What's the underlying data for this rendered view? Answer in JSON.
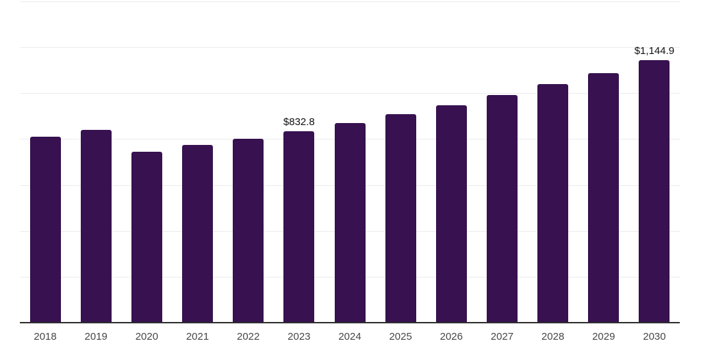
{
  "chart_data": {
    "type": "bar",
    "categories": [
      "2018",
      "2019",
      "2020",
      "2021",
      "2022",
      "2023",
      "2024",
      "2025",
      "2026",
      "2027",
      "2028",
      "2029",
      "2030"
    ],
    "values": [
      811,
      841,
      746,
      773,
      802,
      832.8,
      871,
      909,
      948,
      993,
      1040,
      1088,
      1144.9
    ],
    "annotations": [
      {
        "category": "2023",
        "text": "$832.8"
      },
      {
        "category": "2030",
        "text": "$1,144.9"
      }
    ],
    "title": "",
    "xlabel": "",
    "ylabel": "",
    "ylim": [
      0,
      1400
    ],
    "grid": "horizontal",
    "grid_interval": 200,
    "y_tick_labels_visible": false,
    "legend": "none",
    "colors": {
      "bar": "#371150",
      "grid_line": "#ececec",
      "axis_line": "#2e2e2e",
      "tick_label": "#474747",
      "annotation_text": "#111111",
      "background": "#ffffff"
    }
  }
}
